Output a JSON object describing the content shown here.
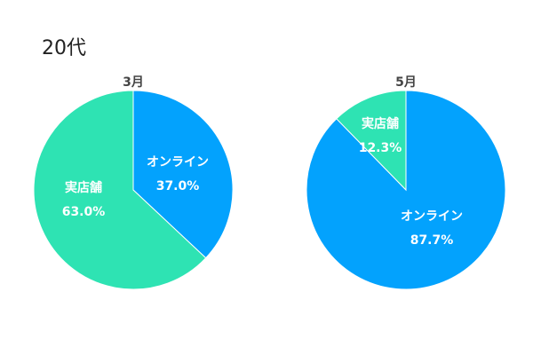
{
  "page": {
    "title": "20代"
  },
  "colors": {
    "online": "#03a2fd",
    "store": "#2ee3b3"
  },
  "chart_data": [
    {
      "type": "pie",
      "title": "3月",
      "slices": [
        {
          "label": "オンライン",
          "value": 37.0,
          "display": "37.0%",
          "color_key": "online"
        },
        {
          "label": "実店舗",
          "value": 63.0,
          "display": "63.0%",
          "color_key": "store"
        }
      ],
      "start": "12 o'clock",
      "direction": "clockwise"
    },
    {
      "type": "pie",
      "title": "5月",
      "slices": [
        {
          "label": "オンライン",
          "value": 87.7,
          "display": "87.7%",
          "color_key": "online"
        },
        {
          "label": "実店舗",
          "value": 12.3,
          "display": "12.3%",
          "color_key": "store"
        }
      ],
      "start": "12 o'clock",
      "direction": "clockwise"
    }
  ]
}
